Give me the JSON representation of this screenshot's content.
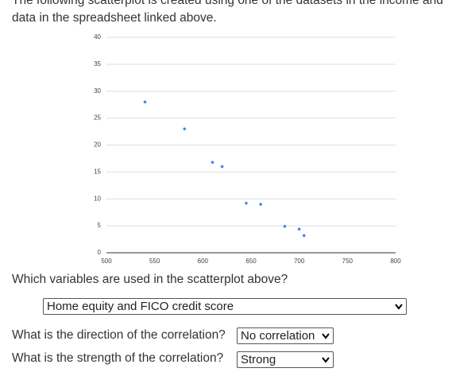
{
  "intro": [
    "The following scatterplot is created using one of the datasets in the income and",
    "data in the spreadsheet linked above."
  ],
  "chart_data": {
    "type": "scatter",
    "x": [
      540,
      581,
      610,
      620,
      645,
      660,
      685,
      700,
      705
    ],
    "values": [
      28,
      23,
      16.8,
      16,
      9.2,
      9,
      4.9,
      4.4,
      3.2
    ],
    "color": "#4285f4",
    "xlim": [
      500,
      800
    ],
    "xticks": [
      500,
      550,
      600,
      650,
      700,
      750,
      800
    ],
    "ylim": [
      0,
      40
    ],
    "yticks": [
      0,
      5,
      10,
      15,
      20,
      25,
      30,
      35,
      40
    ],
    "grid": true
  },
  "questions": [
    {
      "text": "Which variables are used in the scatterplot above?",
      "answer": "Home equity and FICO credit score"
    },
    {
      "text": "What is the direction of the correlation?",
      "answer": "No correlation"
    },
    {
      "text": "What is the strength of the correlation?",
      "answer": "Strong"
    }
  ]
}
